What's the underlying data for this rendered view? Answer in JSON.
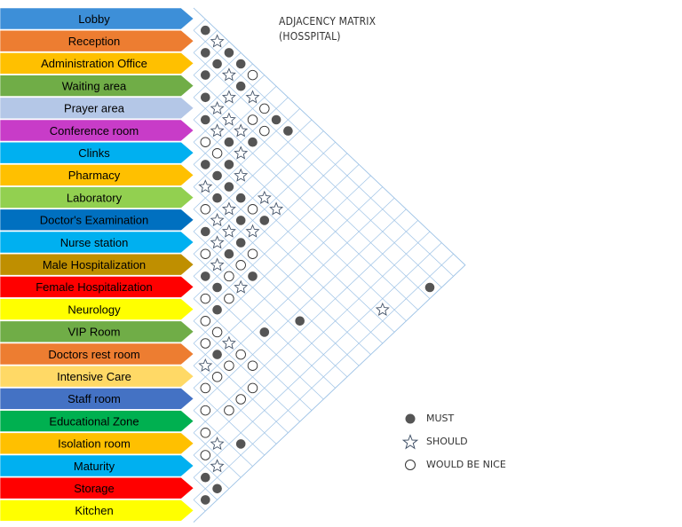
{
  "title_lines": [
    "ADJACENCY MATRIX",
    "(HOSSPITAL)"
  ],
  "rooms": [
    {
      "label": "Lobby",
      "color": "#3d8fd8"
    },
    {
      "label": "Reception",
      "color": "#ed7d31"
    },
    {
      "label": "Administration Office",
      "color": "#ffc000"
    },
    {
      "label": "Waiting area",
      "color": "#70ad47"
    },
    {
      "label": "Prayer area",
      "color": "#b4c7e7"
    },
    {
      "label": "Conference room",
      "color": "#c83cc8"
    },
    {
      "label": "Clinks",
      "color": "#00b0f0"
    },
    {
      "label": "Pharmacy",
      "color": "#ffc000"
    },
    {
      "label": "Laboratory",
      "color": "#92d050"
    },
    {
      "label": "Doctor's Examination",
      "color": "#0070c0"
    },
    {
      "label": "Nurse station",
      "color": "#00b0f0"
    },
    {
      "label": "Male Hospitalization",
      "color": "#bf8f00"
    },
    {
      "label": "Female Hospitalization",
      "color": "#ff0000"
    },
    {
      "label": "Neurology",
      "color": "#ffff00"
    },
    {
      "label": "VIP Room",
      "color": "#70ad47"
    },
    {
      "label": "Doctors rest room",
      "color": "#ed7d31"
    },
    {
      "label": "Intensive Care",
      "color": "#ffd966"
    },
    {
      "label": "Staff room",
      "color": "#4472c4"
    },
    {
      "label": "Educational Zone",
      "color": "#00b050"
    },
    {
      "label": "Isolation room",
      "color": "#ffc000"
    },
    {
      "label": "Maturity",
      "color": "#00b0f0"
    },
    {
      "label": "Storage",
      "color": "#ff0000"
    },
    {
      "label": "Kitchen",
      "color": "#ffff00"
    }
  ],
  "legend": [
    {
      "symbol": "dot",
      "label": "MUST"
    },
    {
      "symbol": "star",
      "label": "SHOULD"
    },
    {
      "symbol": "circle",
      "label": "WOULD BE NICE"
    }
  ],
  "relations": [
    [
      0,
      1,
      "dot"
    ],
    [
      0,
      2,
      "star"
    ],
    [
      0,
      3,
      "dot"
    ],
    [
      0,
      4,
      "dot"
    ],
    [
      0,
      5,
      "circle"
    ],
    [
      1,
      2,
      "dot"
    ],
    [
      1,
      3,
      "dot"
    ],
    [
      1,
      4,
      "star"
    ],
    [
      1,
      5,
      "dot"
    ],
    [
      1,
      6,
      "star"
    ],
    [
      1,
      7,
      "circle"
    ],
    [
      1,
      8,
      "dot"
    ],
    [
      1,
      9,
      "dot"
    ],
    [
      2,
      3,
      "dot"
    ],
    [
      2,
      5,
      "star"
    ],
    [
      2,
      7,
      "circle"
    ],
    [
      2,
      8,
      "circle"
    ],
    [
      3,
      4,
      "dot"
    ],
    [
      3,
      5,
      "star"
    ],
    [
      3,
      6,
      "star"
    ],
    [
      3,
      7,
      "star"
    ],
    [
      3,
      8,
      "dot"
    ],
    [
      4,
      5,
      "dot"
    ],
    [
      4,
      6,
      "star"
    ],
    [
      4,
      7,
      "dot"
    ],
    [
      4,
      8,
      "star"
    ],
    [
      5,
      6,
      "circle"
    ],
    [
      5,
      7,
      "circle"
    ],
    [
      5,
      8,
      "dot"
    ],
    [
      5,
      9,
      "star"
    ],
    [
      5,
      11,
      "star"
    ],
    [
      5,
      12,
      "star"
    ],
    [
      6,
      7,
      "dot"
    ],
    [
      6,
      8,
      "dot"
    ],
    [
      6,
      9,
      "dot"
    ],
    [
      6,
      10,
      "dot"
    ],
    [
      6,
      11,
      "circle"
    ],
    [
      6,
      12,
      "dot"
    ],
    [
      7,
      8,
      "star"
    ],
    [
      7,
      9,
      "dot"
    ],
    [
      7,
      10,
      "star"
    ],
    [
      7,
      11,
      "dot"
    ],
    [
      7,
      12,
      "star"
    ],
    [
      8,
      9,
      "circle"
    ],
    [
      8,
      10,
      "star"
    ],
    [
      8,
      11,
      "star"
    ],
    [
      8,
      12,
      "dot"
    ],
    [
      8,
      13,
      "circle"
    ],
    [
      9,
      10,
      "dot"
    ],
    [
      9,
      11,
      "star"
    ],
    [
      9,
      12,
      "dot"
    ],
    [
      9,
      13,
      "circle"
    ],
    [
      9,
      14,
      "dot"
    ],
    [
      10,
      11,
      "circle"
    ],
    [
      10,
      12,
      "star"
    ],
    [
      10,
      13,
      "circle"
    ],
    [
      10,
      14,
      "star"
    ],
    [
      11,
      12,
      "dot"
    ],
    [
      11,
      13,
      "dot"
    ],
    [
      11,
      14,
      "circle"
    ],
    [
      12,
      13,
      "circle"
    ],
    [
      12,
      14,
      "dot"
    ],
    [
      13,
      14,
      "circle"
    ],
    [
      13,
      15,
      "circle"
    ],
    [
      13,
      16,
      "star"
    ],
    [
      13,
      17,
      "circle"
    ],
    [
      14,
      15,
      "circle"
    ],
    [
      14,
      16,
      "dot"
    ],
    [
      14,
      17,
      "circle"
    ],
    [
      15,
      16,
      "star"
    ],
    [
      15,
      17,
      "circle"
    ],
    [
      16,
      17,
      "circle"
    ],
    [
      2,
      22,
      "dot"
    ],
    [
      5,
      21,
      "star"
    ],
    [
      9,
      18,
      "dot"
    ],
    [
      11,
      17,
      "dot"
    ],
    [
      13,
      18,
      "circle"
    ],
    [
      14,
      19,
      "circle"
    ],
    [
      15,
      19,
      "circle"
    ],
    [
      16,
      19,
      "circle"
    ],
    [
      17,
      18,
      "circle"
    ],
    [
      18,
      19,
      "circle"
    ],
    [
      19,
      20,
      "circle"
    ],
    [
      18,
      20,
      "star"
    ],
    [
      19,
      21,
      "star"
    ],
    [
      20,
      21,
      "dot"
    ],
    [
      20,
      22,
      "dot"
    ],
    [
      21,
      22,
      "dot"
    ],
    [
      17,
      21,
      "dot"
    ]
  ]
}
